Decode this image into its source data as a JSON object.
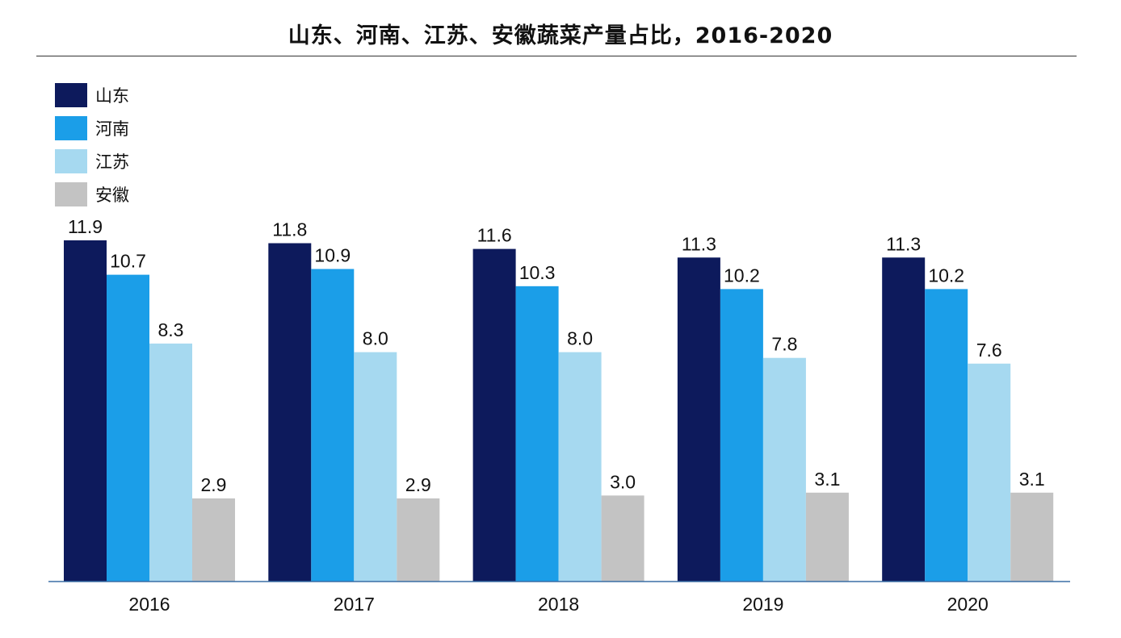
{
  "chart_data": {
    "type": "bar",
    "title": "山东、河南、江苏、安徽蔬菜产量占比，2016-2020",
    "categories": [
      "2016",
      "2017",
      "2018",
      "2019",
      "2020"
    ],
    "series": [
      {
        "name": "山东",
        "color": "#0d1a5c",
        "values": [
          11.9,
          11.8,
          11.6,
          11.3,
          11.3
        ]
      },
      {
        "name": "河南",
        "color": "#1b9ee8",
        "values": [
          10.7,
          10.9,
          10.3,
          10.2,
          10.2
        ]
      },
      {
        "name": "江苏",
        "color": "#a6d9f0",
        "values": [
          8.3,
          8.0,
          8.0,
          7.8,
          7.6
        ]
      },
      {
        "name": "安徽",
        "color": "#c3c3c3",
        "values": [
          2.9,
          2.9,
          3.0,
          3.1,
          3.1
        ]
      }
    ],
    "value_labels": [
      [
        "11.9",
        "11.8",
        "11.6",
        "11.3",
        "11.3"
      ],
      [
        "10.7",
        "10.9",
        "10.3",
        "10.2",
        "10.2"
      ],
      [
        "8.3",
        "8.0",
        "8.0",
        "7.8",
        "7.6"
      ],
      [
        "2.9",
        "2.9",
        "3.0",
        "3.1",
        "3.1"
      ]
    ],
    "ylim": [
      0,
      12
    ],
    "grid": false,
    "legend_position": "top-left"
  }
}
